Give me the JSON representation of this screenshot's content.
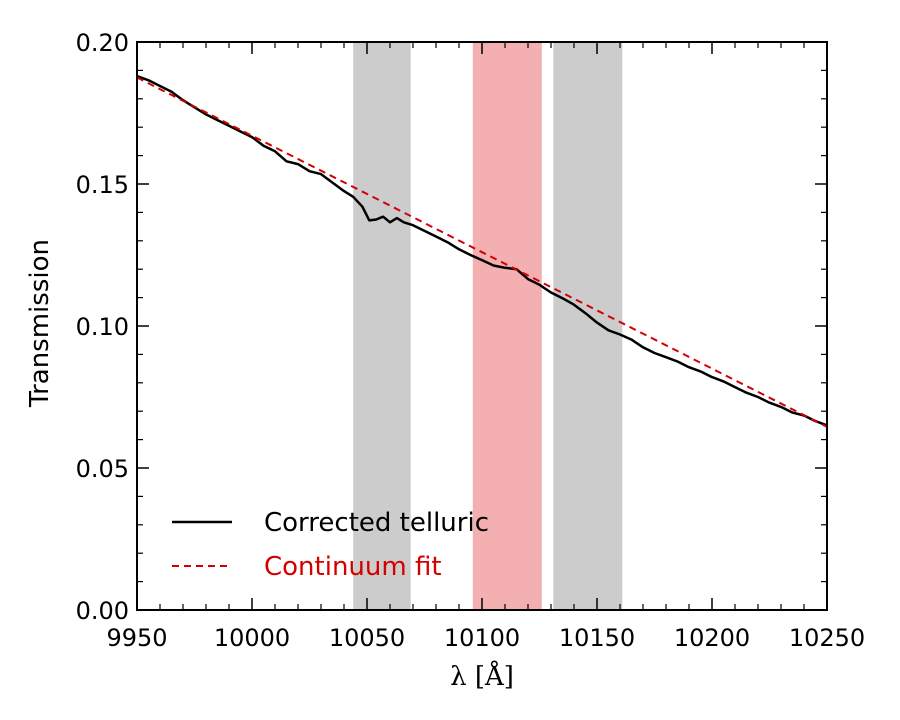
{
  "chart_data": {
    "type": "line",
    "title": "",
    "xlabel": "λ [Å]",
    "ylabel": "Transmission",
    "xlim": [
      9950,
      10250
    ],
    "ylim": [
      0.0,
      0.2
    ],
    "x_ticks": [
      9950,
      10000,
      10050,
      10100,
      10150,
      10200,
      10250
    ],
    "x_tick_labels": [
      "9950",
      "10000",
      "10050",
      "10100",
      "10150",
      "10200",
      "10250"
    ],
    "y_ticks": [
      0.0,
      0.05,
      0.1,
      0.15,
      0.2
    ],
    "y_tick_labels": [
      "0.00",
      "0.05",
      "0.10",
      "0.15",
      "0.20"
    ],
    "grid": false,
    "legend_position": "bottom-left",
    "shaded_regions": [
      {
        "name": "gray-band-1",
        "x_start": 10044,
        "x_end": 10069,
        "color": "#cccccc"
      },
      {
        "name": "red-band",
        "x_start": 10096,
        "x_end": 10126,
        "color": "#f4b0b0"
      },
      {
        "name": "gray-band-2",
        "x_start": 10131,
        "x_end": 10161,
        "color": "#cccccc"
      }
    ],
    "series": [
      {
        "name": "Corrected telluric",
        "style": "solid",
        "color": "#000000",
        "x": [
          9950,
          9955,
          9960,
          9965,
          9970,
          9975,
          9980,
          9985,
          9990,
          9995,
          10000,
          10005,
          10010,
          10015,
          10020,
          10025,
          10030,
          10035,
          10040,
          10044,
          10048,
          10051,
          10054,
          10057,
          10060,
          10063,
          10066,
          10070,
          10075,
          10080,
          10085,
          10090,
          10095,
          10100,
          10105,
          10110,
          10115,
          10120,
          10125,
          10130,
          10135,
          10140,
          10145,
          10150,
          10155,
          10160,
          10165,
          10170,
          10175,
          10180,
          10185,
          10190,
          10195,
          10200,
          10205,
          10210,
          10215,
          10220,
          10225,
          10230,
          10235,
          10240,
          10245,
          10250
        ],
        "y": [
          0.188,
          0.1865,
          0.1845,
          0.1825,
          0.1795,
          0.177,
          0.1745,
          0.1725,
          0.1705,
          0.1685,
          0.1665,
          0.1635,
          0.1615,
          0.158,
          0.157,
          0.1545,
          0.1535,
          0.1505,
          0.1475,
          0.1455,
          0.142,
          0.1372,
          0.1375,
          0.1385,
          0.1365,
          0.138,
          0.1365,
          0.1355,
          0.1335,
          0.1315,
          0.1295,
          0.127,
          0.125,
          0.1232,
          0.1213,
          0.1205,
          0.12,
          0.1165,
          0.1145,
          0.1118,
          0.1098,
          0.1075,
          0.1045,
          0.1012,
          0.0985,
          0.097,
          0.0952,
          0.0925,
          0.0905,
          0.089,
          0.0875,
          0.0855,
          0.084,
          0.082,
          0.0805,
          0.0785,
          0.0765,
          0.075,
          0.073,
          0.0715,
          0.0695,
          0.0685,
          0.0665,
          0.065
        ]
      },
      {
        "name": "Continuum fit",
        "style": "dashed",
        "color": "#d40000",
        "x": [
          9950,
          10250
        ],
        "y": [
          0.1875,
          0.0645
        ]
      }
    ],
    "legend": [
      {
        "label": "Corrected telluric",
        "color": "#000000",
        "style": "solid"
      },
      {
        "label": "Continuum fit",
        "color": "#d40000",
        "style": "dashed"
      }
    ]
  }
}
